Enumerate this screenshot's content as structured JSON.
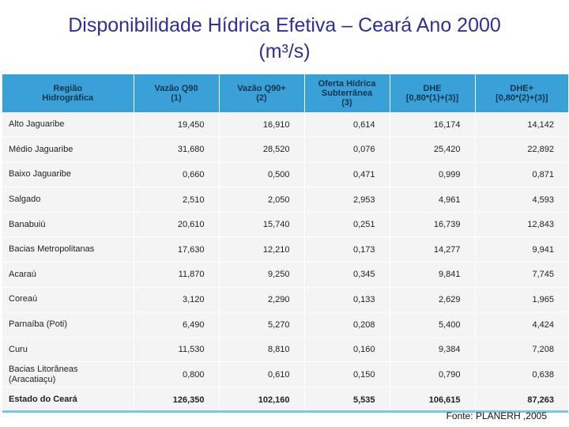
{
  "title": {
    "line1": "Disponibilidade Hídrica Efetiva – Ceará Ano 2000",
    "line2": "(m³/s)"
  },
  "table": {
    "headers": [
      "Região\nHidrográfica",
      "Vazão Q90\n(1)",
      "Vazão Q90+\n(2)",
      "Oferta Hídrica\nSubterrânea\n(3)",
      "DHE\n[0,80*(1)+(3)]",
      "DHE+\n[0,80*(2)+(3)]"
    ],
    "rows": [
      [
        "Alto Jaguaribe",
        "19,450",
        "16,910",
        "0,614",
        "16,174",
        "14,142"
      ],
      [
        "Médio Jaguaribe",
        "31,680",
        "28,520",
        "0,076",
        "25,420",
        "22,892"
      ],
      [
        "Baixo Jaguaribe",
        "0,660",
        "0,500",
        "0,471",
        "0,999",
        "0,871"
      ],
      [
        "Salgado",
        "2,510",
        "2,050",
        "2,953",
        "4,961",
        "4,593"
      ],
      [
        "Banabuiú",
        "20,610",
        "15,740",
        "0,251",
        "16,739",
        "12,843"
      ],
      [
        "Bacias Metropolitanas",
        "17,630",
        "12,210",
        "0,173",
        "14,277",
        "9,941"
      ],
      [
        "Acaraú",
        "11,870",
        "9,250",
        "0,345",
        "9,841",
        "7,745"
      ],
      [
        "Coreaú",
        "3,120",
        "2,290",
        "0,133",
        "2,629",
        "1,965"
      ],
      [
        "Parnaíba (Poti)",
        "6,490",
        "5,270",
        "0,208",
        "5,400",
        "4,424"
      ],
      [
        "Curu",
        "11,530",
        "8,810",
        "0,160",
        "9,384",
        "7,208"
      ],
      [
        "Bacias Litorâneas\n(Aracatiaçu)",
        "0,800",
        "0,610",
        "0,150",
        "0,790",
        "0,638"
      ]
    ],
    "total": [
      "Estado do Ceará",
      "126,350",
      "102,160",
      "5,535",
      "106,615",
      "87,263"
    ]
  },
  "source": "Fonte: PLANERH ,2005",
  "colors": {
    "title": "#2e3192",
    "header_bg": "#3aa0d8",
    "row_bg": "#f4f4f4"
  }
}
